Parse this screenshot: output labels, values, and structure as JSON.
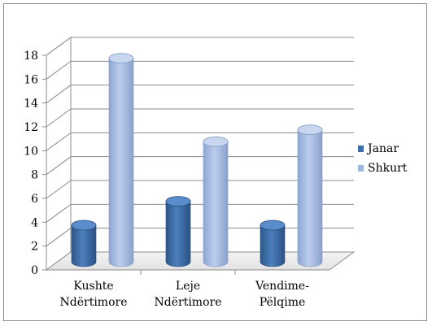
{
  "chart_data": {
    "type": "bar",
    "variant": "3d-cylinder",
    "categories": [
      [
        "Kushte",
        "Ndërtimore"
      ],
      [
        "Leje",
        "Ndërtimore"
      ],
      [
        "Vendime-",
        "Pëlqime"
      ]
    ],
    "series": [
      {
        "name": "Janar",
        "values": [
          3,
          5,
          3
        ],
        "color": "#3f6fa8"
      },
      {
        "name": "Shkurt",
        "values": [
          17,
          10,
          11
        ],
        "color": "#9fb6df"
      }
    ],
    "ylim": [
      0,
      18
    ],
    "yticks": [
      0,
      2,
      4,
      6,
      8,
      10,
      12,
      14,
      16,
      18
    ],
    "grid": true,
    "legend_position": "right",
    "title": "",
    "xlabel": "",
    "ylabel": ""
  }
}
